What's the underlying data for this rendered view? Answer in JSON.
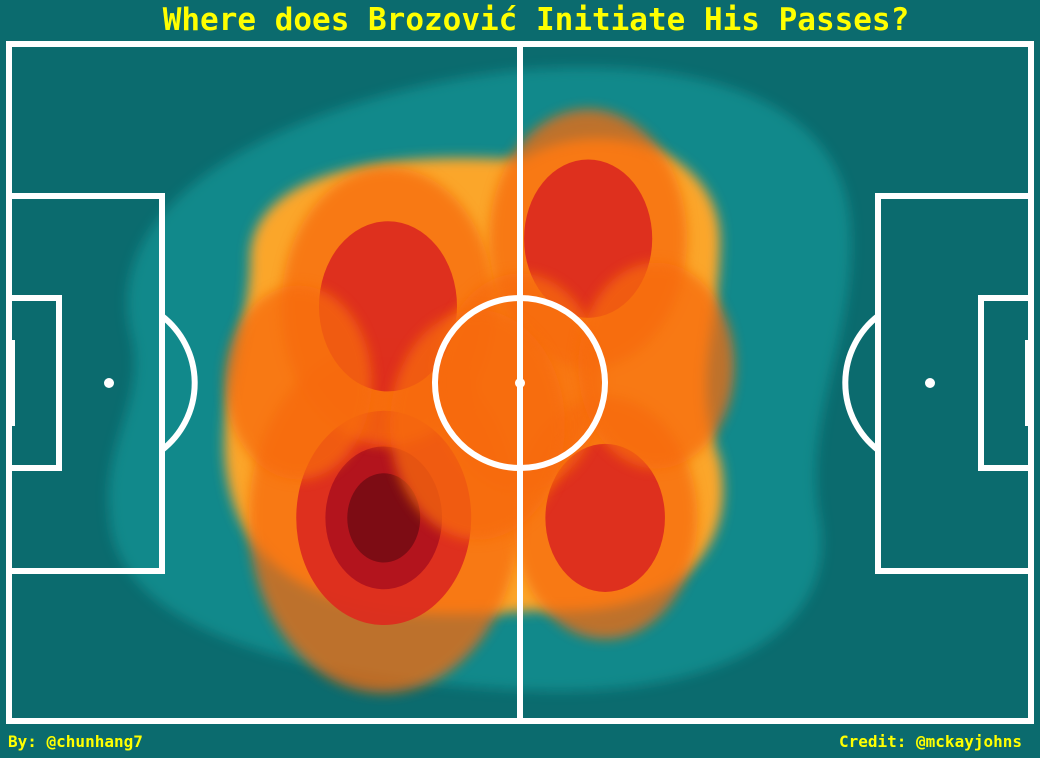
{
  "title": "Where does Brozović Initiate His Passes?",
  "byline": "By: @chunhang7",
  "credit": "Credit: @mckayjohns",
  "colors": {
    "background": "#0b6b6e",
    "lines": "#ffffff",
    "text": "#ffff00",
    "heat_low": "#16a3a3",
    "heat_mid": "#fba62a",
    "heat_orange": "#f76a0c",
    "heat_red": "#dc2c1f",
    "heat_peak": "#7a0c14"
  },
  "chart_data": {
    "type": "heatmap",
    "description_of_axes": "pitch coordinates, 120 x 80 (length x width)",
    "xlim": [
      0,
      120
    ],
    "ylim": [
      0,
      80
    ],
    "grid": false,
    "legend": "none",
    "density_peaks": [
      {
        "x": 44,
        "y": 56,
        "intensity": 1.0
      },
      {
        "x": 44.5,
        "y": 31,
        "intensity": 0.7
      },
      {
        "x": 68,
        "y": 23,
        "intensity": 0.62
      },
      {
        "x": 70,
        "y": 56,
        "intensity": 0.55
      },
      {
        "x": 60,
        "y": 40,
        "intensity": 0.45
      },
      {
        "x": 55,
        "y": 45,
        "intensity": 0.5
      },
      {
        "x": 76,
        "y": 38,
        "intensity": 0.4
      },
      {
        "x": 34,
        "y": 40,
        "intensity": 0.35
      }
    ]
  }
}
